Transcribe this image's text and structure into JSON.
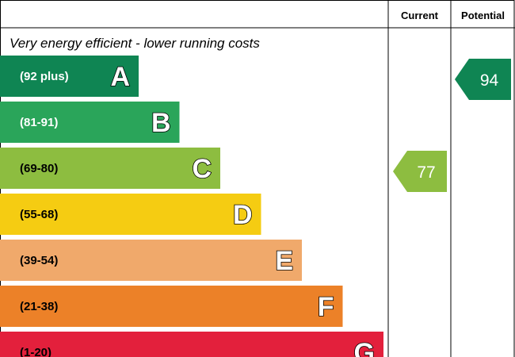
{
  "header": {
    "current_label": "Current",
    "potential_label": "Potential"
  },
  "subtitle": "Very energy efficient - lower running costs",
  "chart_data": {
    "type": "bar",
    "categories": [
      "A",
      "B",
      "C",
      "D",
      "E",
      "F",
      "G"
    ],
    "ranges": [
      "(92 plus)",
      "(81-91)",
      "(69-80)",
      "(55-68)",
      "(39-54)",
      "(21-38)",
      "(1-20)"
    ],
    "band_min": [
      92,
      81,
      69,
      55,
      39,
      21,
      1
    ],
    "band_max": [
      100,
      91,
      80,
      68,
      54,
      38,
      20
    ],
    "colors": [
      "#0f8553",
      "#2aa55a",
      "#8dbd40",
      "#f5cc12",
      "#f0a96b",
      "#ec8128",
      "#e3203c"
    ],
    "range_text_colors": [
      "#ffffff",
      "#ffffff",
      "#000000",
      "#000000",
      "#000000",
      "#000000",
      "#000000"
    ],
    "current": {
      "value": 77,
      "band": "C",
      "color": "#8dbd40"
    },
    "potential": {
      "value": 94,
      "band": "A",
      "color": "#0f8553"
    }
  }
}
